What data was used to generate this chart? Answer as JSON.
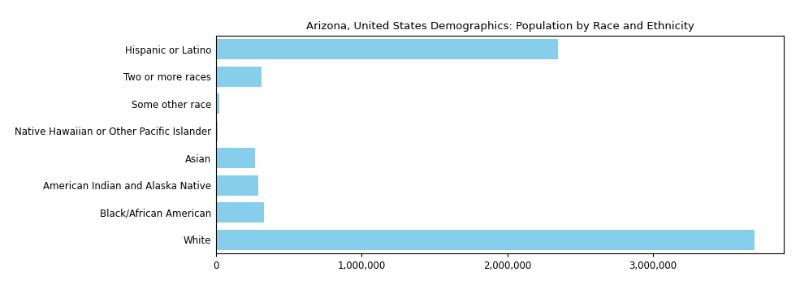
{
  "title": "Arizona, United States Demographics: Population by Race and Ethnicity",
  "categories": [
    "White",
    "Black/African American",
    "American Indian and Alaska Native",
    "Asian",
    "Native Hawaiian or Other Pacific Islander",
    "Some other race",
    "Two or more races",
    "Hispanic or Latino"
  ],
  "values": [
    3700000,
    330000,
    290000,
    270000,
    12000,
    20000,
    310000,
    2350000
  ],
  "bar_color": "#87CEEB",
  "xlim": [
    0,
    3900000
  ],
  "xticks": [
    0,
    1000000,
    2000000,
    3000000
  ],
  "xtick_labels": [
    "0",
    "1,000,000",
    "2,000,000",
    "3,000,000"
  ],
  "title_fontsize": 9.5,
  "label_fontsize": 8.5,
  "tick_fontsize": 8.5,
  "background_color": "#ffffff"
}
